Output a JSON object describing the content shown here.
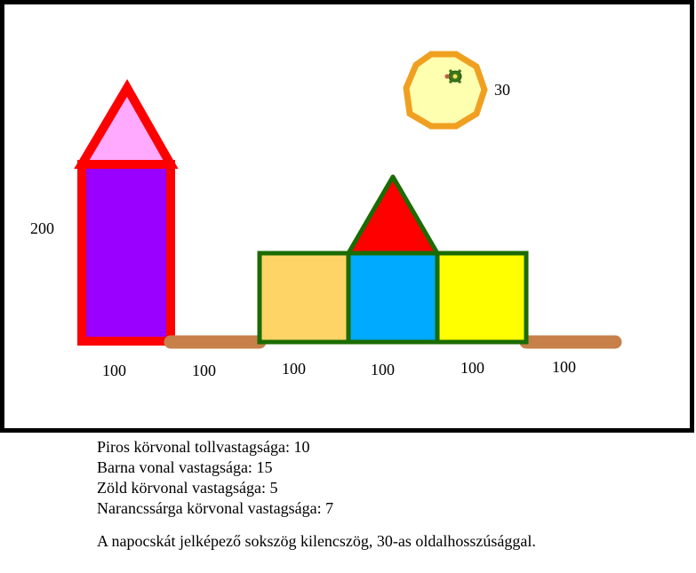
{
  "colors": {
    "frame": "#000000",
    "red": "#ff0000",
    "pink": "#ffaaff",
    "purple": "#9900ff",
    "brown": "#c8804a",
    "green": "#1a6b00",
    "light_orange": "#ffd466",
    "blue": "#00aaff",
    "yellow": "#ffff00",
    "orange": "#f0a020",
    "pale_yellow": "#ffffb0"
  },
  "labels": {
    "height_200": "200",
    "sun_side_30": "30",
    "base_1": "100",
    "base_2": "100",
    "base_3": "100",
    "base_4": "100",
    "base_5": "100",
    "base_6": "100"
  },
  "notes": {
    "red_outline": "Piros körvonal tollvastagsága: 10",
    "brown_line": "Barna vonal vastagsága: 15",
    "green_outline": "Zöld körvonal vastagsága: 5",
    "orange_outline": "Narancssárga körvonal vastagsága: 7",
    "sun_description": "A napocskát jelképező sokszög kilencszög, 30-as oldalhosszúsággal."
  },
  "icons": {
    "turtle": "turtle-icon"
  }
}
